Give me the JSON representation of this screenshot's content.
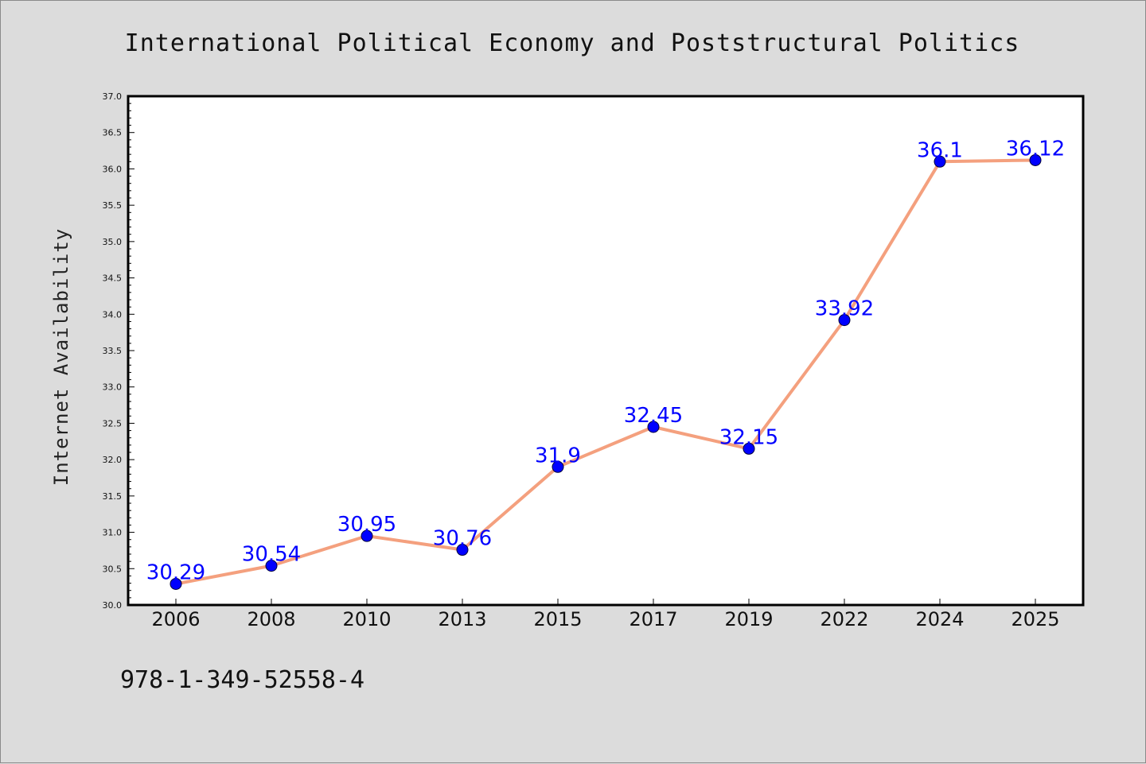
{
  "chart_data": {
    "type": "line",
    "title": "International Political Economy and Poststructural Politics",
    "xlabel": "",
    "ylabel": "Internet Availability",
    "categories": [
      "2006",
      "2008",
      "2010",
      "2013",
      "2015",
      "2017",
      "2019",
      "2022",
      "2024",
      "2025"
    ],
    "series": [
      {
        "values": [
          30.29,
          30.54,
          30.95,
          30.76,
          31.9,
          32.45,
          32.15,
          33.92,
          36.1,
          36.12
        ],
        "data_labels": [
          "30.29",
          "30.54",
          "30.95",
          "30.76",
          "31.9",
          "32.45",
          "32.15",
          "33.92",
          "36.1",
          "36.12"
        ],
        "line_color": "#f4a07e",
        "marker_color": "#0000ff"
      }
    ],
    "ylim": [
      30.0,
      37.0
    ],
    "yticks": [
      "30.0",
      "30.5",
      "31.0",
      "31.5",
      "32.0",
      "32.5",
      "33.0",
      "33.5",
      "34.0",
      "34.5",
      "35.0",
      "35.5",
      "36.0",
      "36.5",
      "37.0"
    ],
    "grid": false,
    "legend": "none",
    "label_color": "#0000ff",
    "background_color": "#dcdcdc",
    "plot_background": "#ffffff"
  },
  "footer": {
    "isbn": "978-1-349-52558-4"
  }
}
